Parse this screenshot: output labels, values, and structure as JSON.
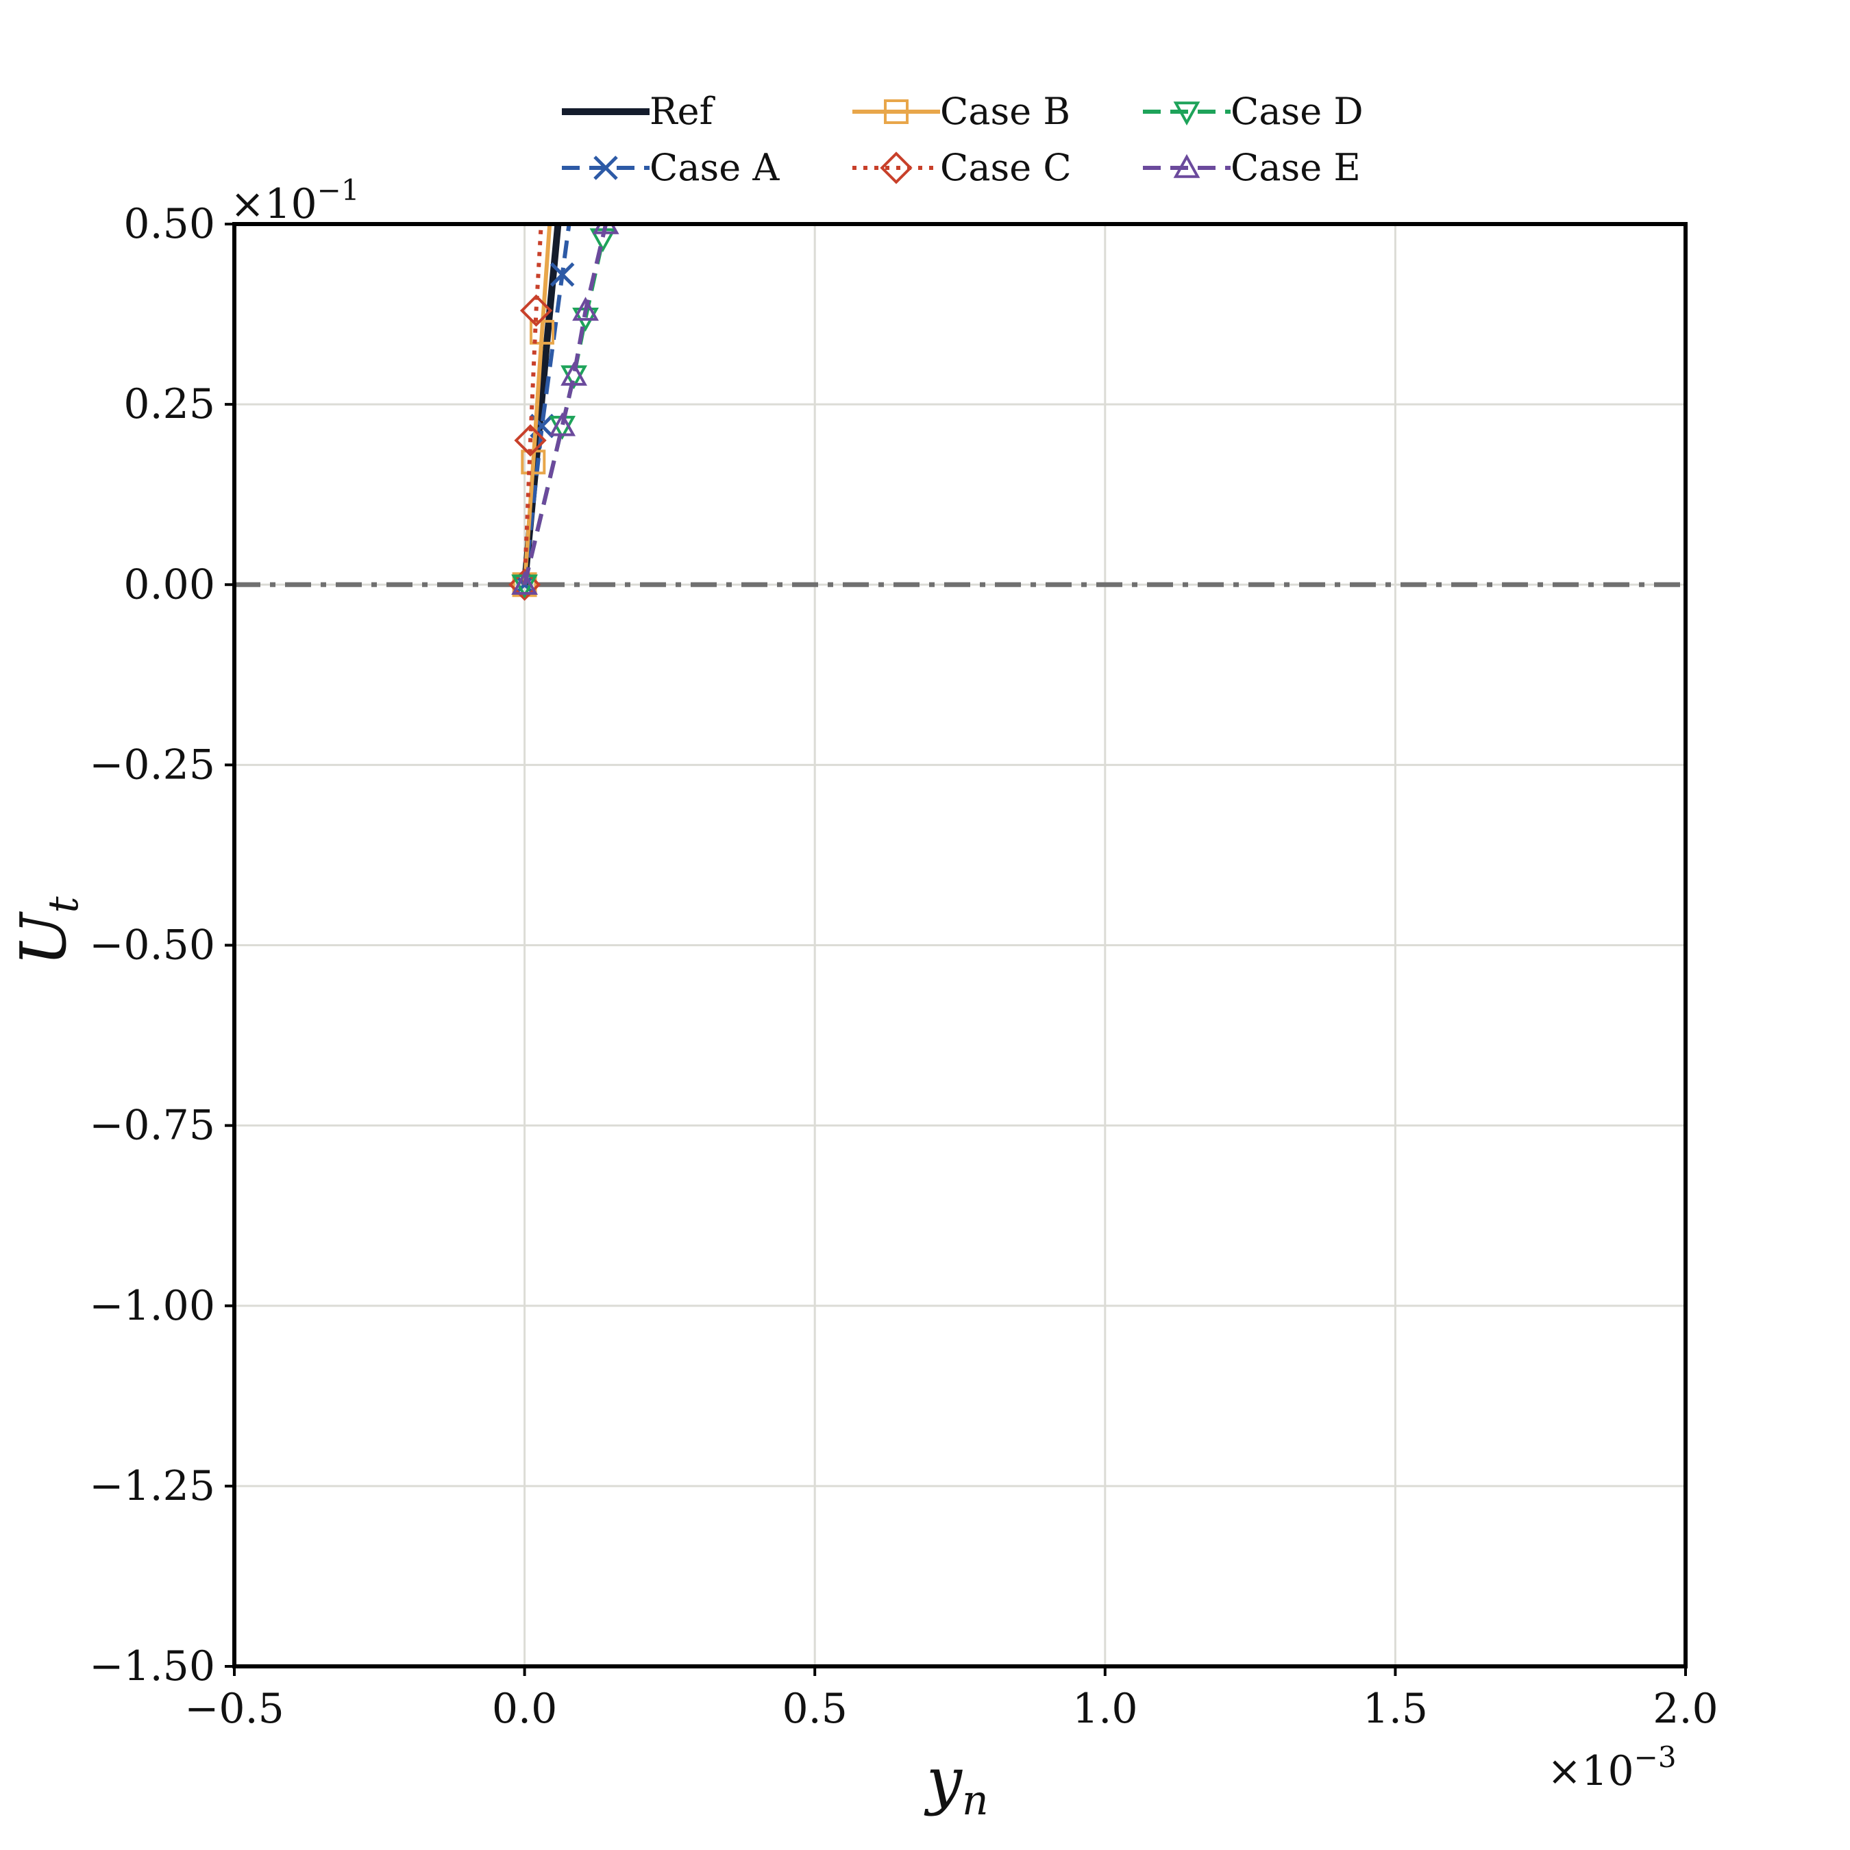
{
  "chart_data": {
    "type": "line",
    "title": "",
    "xlabel": {
      "main": "y",
      "sub": "n"
    },
    "ylabel": {
      "main": "U",
      "sub": "t"
    },
    "x_multiplier": {
      "base": "×10",
      "exp": "−3"
    },
    "y_multiplier": {
      "base": "×10",
      "exp": "−1"
    },
    "xlim": [
      -0.5,
      2.0
    ],
    "ylim": [
      -1.5,
      0.5
    ],
    "x_ticks": [
      -0.5,
      0.0,
      0.5,
      1.0,
      1.5,
      2.0
    ],
    "x_tick_labels": [
      "−0.5",
      "0.0",
      "0.5",
      "1.0",
      "1.5",
      "2.0"
    ],
    "y_ticks": [
      -1.5,
      -1.25,
      -1.0,
      -0.75,
      -0.5,
      -0.25,
      0.0,
      0.25,
      0.5
    ],
    "y_tick_labels": [
      "−1.50",
      "−1.25",
      "−1.00",
      "−0.75",
      "−0.50",
      "−0.25",
      "0.00",
      "0.25",
      "0.50"
    ],
    "grid": true,
    "legend_placement": "top-center, above plot, 3 columns",
    "reference_line": {
      "y": 0.0,
      "style": "dashdot",
      "color": "#707070"
    },
    "series": [
      {
        "name": "Ref",
        "color": "#141c2c",
        "dash": "solid",
        "marker": "none",
        "width": 10,
        "x": [
          0.0,
          0.02,
          0.04,
          0.06
        ],
        "y": [
          0.0,
          0.17,
          0.35,
          0.52
        ]
      },
      {
        "name": "Case A",
        "color": "#2d5aa6",
        "dash": "dashed",
        "marker": "x",
        "width": 6,
        "x": [
          0.0,
          0.03,
          0.065,
          0.08
        ],
        "y": [
          0.0,
          0.22,
          0.43,
          0.52
        ]
      },
      {
        "name": "Case B",
        "color": "#e8a64a",
        "dash": "solid",
        "marker": "square",
        "width": 6,
        "x": [
          0.0,
          0.015,
          0.03,
          0.045
        ],
        "y": [
          0.0,
          0.17,
          0.35,
          0.52
        ]
      },
      {
        "name": "Case C",
        "color": "#c8402a",
        "dash": "dotted",
        "marker": "diamond",
        "width": 6,
        "x": [
          0.0,
          0.01,
          0.02,
          0.03
        ],
        "y": [
          0.0,
          0.2,
          0.38,
          0.52
        ]
      },
      {
        "name": "Case D",
        "color": "#1ea35a",
        "dash": "dashed",
        "marker": "triangle-down",
        "width": 6,
        "x": [
          0.0,
          0.065,
          0.085,
          0.105,
          0.135
        ],
        "y": [
          0.0,
          0.22,
          0.29,
          0.37,
          0.48
        ]
      },
      {
        "name": "Case E",
        "color": "#6b4a9c",
        "dash": "dashed",
        "marker": "triangle-up",
        "width": 6,
        "x": [
          0.0,
          0.065,
          0.085,
          0.105,
          0.14
        ],
        "y": [
          0.0,
          0.22,
          0.29,
          0.38,
          0.5
        ]
      }
    ]
  }
}
